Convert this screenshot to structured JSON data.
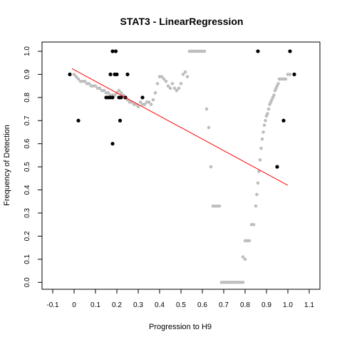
{
  "chart_data": {
    "type": "scatter",
    "title": "STAT3 - LinearRegression",
    "xlabel": "Progression to H9",
    "ylabel": "Frequency of Detection",
    "xlim": [
      -0.15,
      1.15
    ],
    "ylim": [
      -0.03,
      1.04
    ],
    "x_ticks": [
      "-0.1",
      "0",
      "0.1",
      "0.2",
      "0.3",
      "0.4",
      "0.5",
      "0.6",
      "0.7",
      "0.8",
      "0.9",
      "1.0",
      "1.1"
    ],
    "y_ticks": [
      "0.0",
      "0.1",
      "0.2",
      "0.3",
      "0.4",
      "0.5",
      "0.6",
      "0.7",
      "0.8",
      "0.9",
      "1.0"
    ],
    "grid": false,
    "colors": {
      "smoothed": "#bebebe",
      "observed": "#000000",
      "regression": "#ff0000"
    },
    "regression_line": {
      "x": [
        -0.01,
        1.0
      ],
      "y": [
        0.925,
        0.42
      ]
    },
    "series": [
      {
        "points": [
          [
            0.0,
            0.9
          ],
          [
            0.01,
            0.89
          ],
          [
            0.02,
            0.88
          ],
          [
            0.03,
            0.87
          ],
          [
            0.04,
            0.87
          ],
          [
            0.05,
            0.87
          ],
          [
            0.06,
            0.86
          ],
          [
            0.07,
            0.86
          ],
          [
            0.08,
            0.85
          ],
          [
            0.09,
            0.85
          ],
          [
            0.1,
            0.85
          ],
          [
            0.11,
            0.84
          ],
          [
            0.12,
            0.84
          ],
          [
            0.13,
            0.83
          ],
          [
            0.14,
            0.83
          ],
          [
            0.15,
            0.82
          ],
          [
            0.16,
            0.82
          ],
          [
            0.17,
            0.81
          ],
          [
            0.18,
            0.81
          ],
          [
            0.19,
            0.81
          ],
          [
            0.2,
            0.82
          ],
          [
            0.21,
            0.83
          ],
          [
            0.22,
            0.82
          ],
          [
            0.23,
            0.81
          ],
          [
            0.24,
            0.8
          ],
          [
            0.25,
            0.79
          ],
          [
            0.26,
            0.78
          ],
          [
            0.27,
            0.78
          ],
          [
            0.28,
            0.77
          ],
          [
            0.29,
            0.77
          ],
          [
            0.3,
            0.76
          ],
          [
            0.31,
            0.78
          ],
          [
            0.32,
            0.77
          ],
          [
            0.33,
            0.77
          ],
          [
            0.34,
            0.78
          ],
          [
            0.35,
            0.78
          ],
          [
            0.36,
            0.77
          ],
          [
            0.37,
            0.79
          ],
          [
            0.38,
            0.82
          ],
          [
            0.39,
            0.86
          ],
          [
            0.4,
            0.89
          ],
          [
            0.41,
            0.89
          ],
          [
            0.42,
            0.88
          ],
          [
            0.43,
            0.87
          ],
          [
            0.44,
            0.85
          ],
          [
            0.45,
            0.84
          ],
          [
            0.46,
            0.86
          ],
          [
            0.47,
            0.84
          ],
          [
            0.48,
            0.83
          ],
          [
            0.49,
            0.84
          ],
          [
            0.5,
            0.86
          ],
          [
            0.51,
            0.9
          ],
          [
            0.52,
            0.91
          ],
          [
            0.53,
            0.89
          ],
          [
            0.54,
            1.0
          ],
          [
            0.55,
            1.0
          ],
          [
            0.56,
            1.0
          ],
          [
            0.57,
            1.0
          ],
          [
            0.58,
            1.0
          ],
          [
            0.59,
            1.0
          ],
          [
            0.6,
            1.0
          ],
          [
            0.61,
            1.0
          ],
          [
            0.62,
            0.75
          ],
          [
            0.63,
            0.67
          ],
          [
            0.64,
            0.5
          ],
          [
            0.65,
            0.33
          ],
          [
            0.66,
            0.33
          ],
          [
            0.67,
            0.33
          ],
          [
            0.68,
            0.33
          ],
          [
            0.69,
            0.0
          ],
          [
            0.7,
            0.0
          ],
          [
            0.71,
            0.0
          ],
          [
            0.72,
            0.0
          ],
          [
            0.73,
            0.0
          ],
          [
            0.74,
            0.0
          ],
          [
            0.75,
            0.0
          ],
          [
            0.76,
            0.0
          ],
          [
            0.77,
            0.0
          ],
          [
            0.78,
            0.0
          ],
          [
            0.79,
            0.0
          ],
          [
            0.79,
            0.11
          ],
          [
            0.8,
            0.1
          ],
          [
            0.8,
            0.18
          ],
          [
            0.81,
            0.18
          ],
          [
            0.82,
            0.18
          ],
          [
            0.83,
            0.25
          ],
          [
            0.84,
            0.25
          ],
          [
            0.85,
            0.33
          ],
          [
            0.855,
            0.38
          ],
          [
            0.86,
            0.43
          ],
          [
            0.865,
            0.48
          ],
          [
            0.87,
            0.53
          ],
          [
            0.875,
            0.58
          ],
          [
            0.88,
            0.62
          ],
          [
            0.885,
            0.65
          ],
          [
            0.89,
            0.68
          ],
          [
            0.895,
            0.7
          ],
          [
            0.9,
            0.72
          ],
          [
            0.905,
            0.73
          ],
          [
            0.91,
            0.75
          ],
          [
            0.915,
            0.77
          ],
          [
            0.92,
            0.78
          ],
          [
            0.925,
            0.79
          ],
          [
            0.93,
            0.8
          ],
          [
            0.935,
            0.81
          ],
          [
            0.94,
            0.83
          ],
          [
            0.945,
            0.84
          ],
          [
            0.95,
            0.85
          ],
          [
            0.955,
            0.86
          ],
          [
            0.96,
            0.88
          ],
          [
            0.97,
            0.88
          ],
          [
            0.98,
            0.88
          ],
          [
            0.99,
            0.88
          ],
          [
            1.0,
            0.9
          ],
          [
            1.01,
            0.9
          ]
        ]
      },
      {
        "points": [
          [
            -0.02,
            0.9
          ],
          [
            0.02,
            0.7
          ],
          [
            0.15,
            0.8
          ],
          [
            0.16,
            0.8
          ],
          [
            0.17,
            0.8
          ],
          [
            0.18,
            0.8
          ],
          [
            0.17,
            0.9
          ],
          [
            0.18,
            0.6
          ],
          [
            0.18,
            1.0
          ],
          [
            0.195,
            1.0
          ],
          [
            0.19,
            0.9
          ],
          [
            0.2,
            0.9
          ],
          [
            0.21,
            0.8
          ],
          [
            0.215,
            0.7
          ],
          [
            0.22,
            0.8
          ],
          [
            0.24,
            0.8
          ],
          [
            0.25,
            0.9
          ],
          [
            0.32,
            0.8
          ],
          [
            0.86,
            1.0
          ],
          [
            0.95,
            0.5
          ],
          [
            0.98,
            0.7
          ],
          [
            1.01,
            1.0
          ],
          [
            1.03,
            0.9
          ]
        ]
      }
    ]
  }
}
